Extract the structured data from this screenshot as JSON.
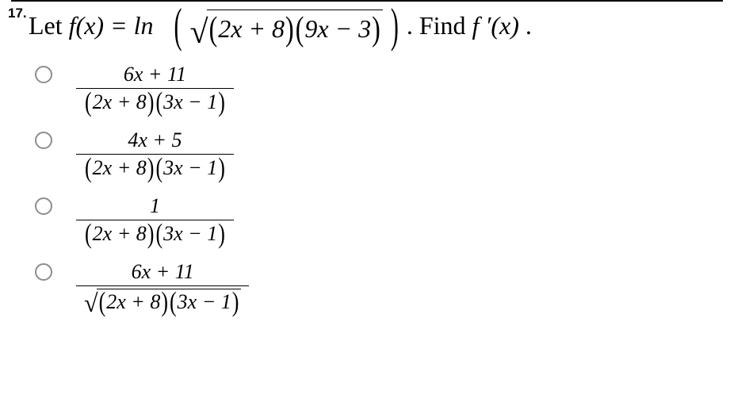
{
  "question": {
    "number": "17.",
    "prefix": "Let ",
    "func_lhs": "f(x) = ln",
    "expr_a": "2x + 8",
    "expr_b": "9x − 3",
    "suffix": ". Find ",
    "find": "f ′(x)",
    "end": "."
  },
  "options": [
    {
      "num": "6x + 11",
      "den_a": "2x + 8",
      "den_b": "3x − 1",
      "den_sqrt": false
    },
    {
      "num": "4x + 5",
      "den_a": "2x + 8",
      "den_b": "3x − 1",
      "den_sqrt": false
    },
    {
      "num": "1",
      "den_a": "2x + 8",
      "den_b": "3x − 1",
      "den_sqrt": false
    },
    {
      "num": "6x + 11",
      "den_a": "2x + 8",
      "den_b": "3x − 1",
      "den_sqrt": true
    }
  ],
  "style": {
    "bg": "#ffffff",
    "fg": "#000000",
    "radio_border": "#8d8d8d",
    "prompt_fontsize": 32,
    "option_fontsize": 26,
    "qnum_fontsize": 17,
    "rule_color": "#000000"
  }
}
